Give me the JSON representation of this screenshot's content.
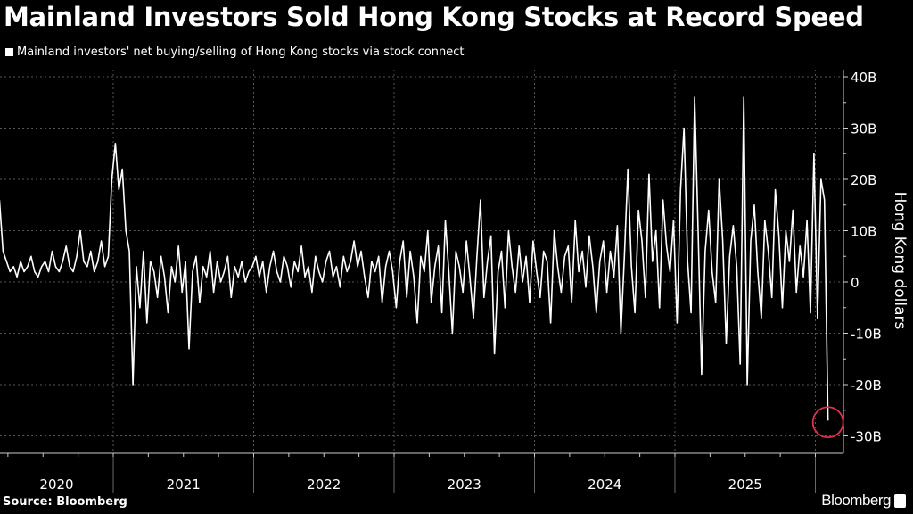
{
  "chart_data": {
    "type": "line",
    "title": "Mainland Investors Sold Hong Kong Stocks at Record Speed",
    "legend": [
      "Mainland investors' net buying/selling of Hong Kong stocks via stock connect"
    ],
    "legend_position": "top-left",
    "ylabel": "Hong Kong dollars",
    "ylim": [
      -32,
      42
    ],
    "yticks": [
      {
        "v": 40,
        "label": "40B"
      },
      {
        "v": 30,
        "label": "30B"
      },
      {
        "v": 20,
        "label": "20B"
      },
      {
        "v": 10,
        "label": "10B"
      },
      {
        "v": 0,
        "label": "0"
      },
      {
        "v": -10,
        "label": "-10B"
      },
      {
        "v": -20,
        "label": "-20B"
      },
      {
        "v": -30,
        "label": "-30B"
      }
    ],
    "xlabels": [
      {
        "year": 2020,
        "label": "2020"
      },
      {
        "year": 2021,
        "label": "2021"
      },
      {
        "year": 2022,
        "label": "2022"
      },
      {
        "year": 2023,
        "label": "2023"
      },
      {
        "year": 2024,
        "label": "2024"
      },
      {
        "year": 2025,
        "label": "2025"
      }
    ],
    "x_start_year": 2020.19,
    "x_step_year": 0.025,
    "unit": "billion HKD",
    "values": [
      16,
      6,
      4,
      2,
      3,
      1,
      4,
      2,
      3,
      5,
      2,
      1,
      3,
      4,
      2,
      6,
      3,
      2,
      4,
      7,
      3,
      2,
      5,
      10,
      4,
      3,
      6,
      2,
      4,
      8,
      3,
      5,
      20,
      27,
      18,
      22,
      10,
      6,
      -20,
      3,
      -5,
      6,
      -8,
      4,
      2,
      -3,
      5,
      1,
      -6,
      3,
      0,
      7,
      -2,
      4,
      -13,
      2,
      5,
      -4,
      3,
      1,
      6,
      -2,
      4,
      0,
      2,
      5,
      -3,
      3,
      1,
      4,
      0,
      2,
      3,
      5,
      1,
      4,
      -2,
      3,
      6,
      2,
      0,
      5,
      3,
      -1,
      4,
      2,
      7,
      1,
      3,
      -2,
      5,
      2,
      0,
      4,
      6,
      1,
      3,
      -1,
      5,
      2,
      4,
      8,
      3,
      6,
      1,
      -3,
      4,
      2,
      5,
      -4,
      3,
      6,
      2,
      -5,
      4,
      8,
      -3,
      6,
      1,
      -8,
      5,
      2,
      10,
      -4,
      3,
      7,
      -6,
      12,
      2,
      -10,
      6,
      3,
      -2,
      8,
      1,
      -7,
      5,
      16,
      -3,
      4,
      9,
      -14,
      2,
      6,
      -5,
      10,
      3,
      -2,
      7,
      0,
      5,
      -4,
      8,
      2,
      -3,
      6,
      4,
      -8,
      10,
      3,
      -2,
      5,
      7,
      -4,
      12,
      2,
      6,
      -1,
      9,
      3,
      -6,
      4,
      8,
      -2,
      6,
      1,
      11,
      -10,
      5,
      22,
      3,
      -6,
      14,
      8,
      -3,
      21,
      4,
      10,
      -5,
      16,
      7,
      2,
      12,
      -8,
      18,
      30,
      4,
      -6,
      36,
      10,
      -18,
      6,
      14,
      2,
      -4,
      20,
      8,
      -12,
      5,
      11,
      3,
      -16,
      36,
      -20,
      8,
      15,
      2,
      -7,
      12,
      6,
      -3,
      18,
      9,
      -5,
      10,
      4,
      14,
      -2,
      7,
      1,
      12,
      -6,
      25,
      -7,
      20,
      16,
      -27
    ],
    "annotation": "red circle highlighting latest record low",
    "colors": {
      "line": "#ffffff",
      "highlight": "#e0314b",
      "grid": "#555555"
    }
  },
  "source": "Source: Bloomberg",
  "brand": "Bloomberg"
}
